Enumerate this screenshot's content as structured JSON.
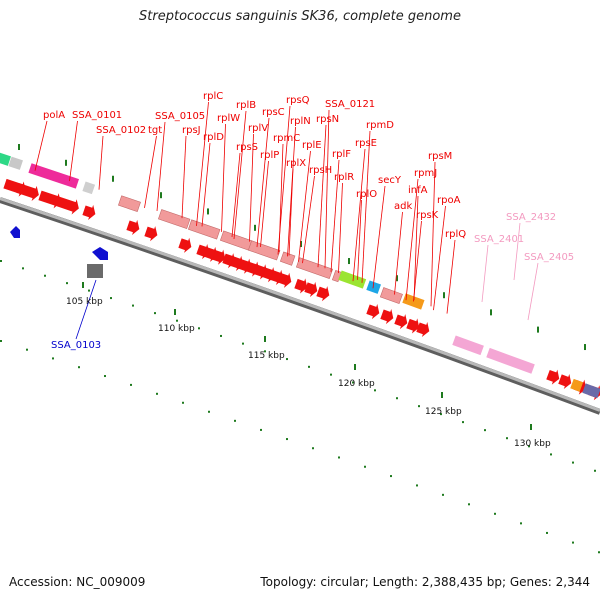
{
  "title": "Streptococcus sanguinis SK36, complete genome",
  "footer": {
    "accession": "Accession: NC_009009",
    "summary": "Topology: circular; Length: 2,388,435 bp; Genes: 2,344"
  },
  "colors": {
    "backbone": "#8a8a8a",
    "cds_arrow": "#ee1111",
    "ribosomal_block": "#f19a9a",
    "gene_label": "#ee0000",
    "alt_label": "#0000cc",
    "pink_label": "#f39ac0",
    "tick": "#1e7a1e"
  },
  "scale_ticks": [
    "105 kbp",
    "110 kbp",
    "115 kbp",
    "120 kbp",
    "125 kbp",
    "130 kbp"
  ],
  "labels": {
    "red": [
      "polA",
      "SSA_0101",
      "SSA_0102",
      "tgt",
      "SSA_0105",
      "rpsJ",
      "rplC",
      "rplD",
      "rplW",
      "rplB",
      "rpsS",
      "rplV",
      "rpsC",
      "rplP",
      "rpmC",
      "rpsQ",
      "rplN",
      "rplX",
      "rplE",
      "rpsN",
      "SSA_0121",
      "rpsH",
      "rplF",
      "rplR",
      "rpsE",
      "rpmD",
      "rplO",
      "secY",
      "adk",
      "infA",
      "rpmJ",
      "rpsK",
      "rpsM",
      "rpoA",
      "rplQ"
    ],
    "blue": [
      "SSA_0103"
    ],
    "pink": [
      "SSA_2401",
      "SSA_2432",
      "SSA_2405"
    ]
  }
}
